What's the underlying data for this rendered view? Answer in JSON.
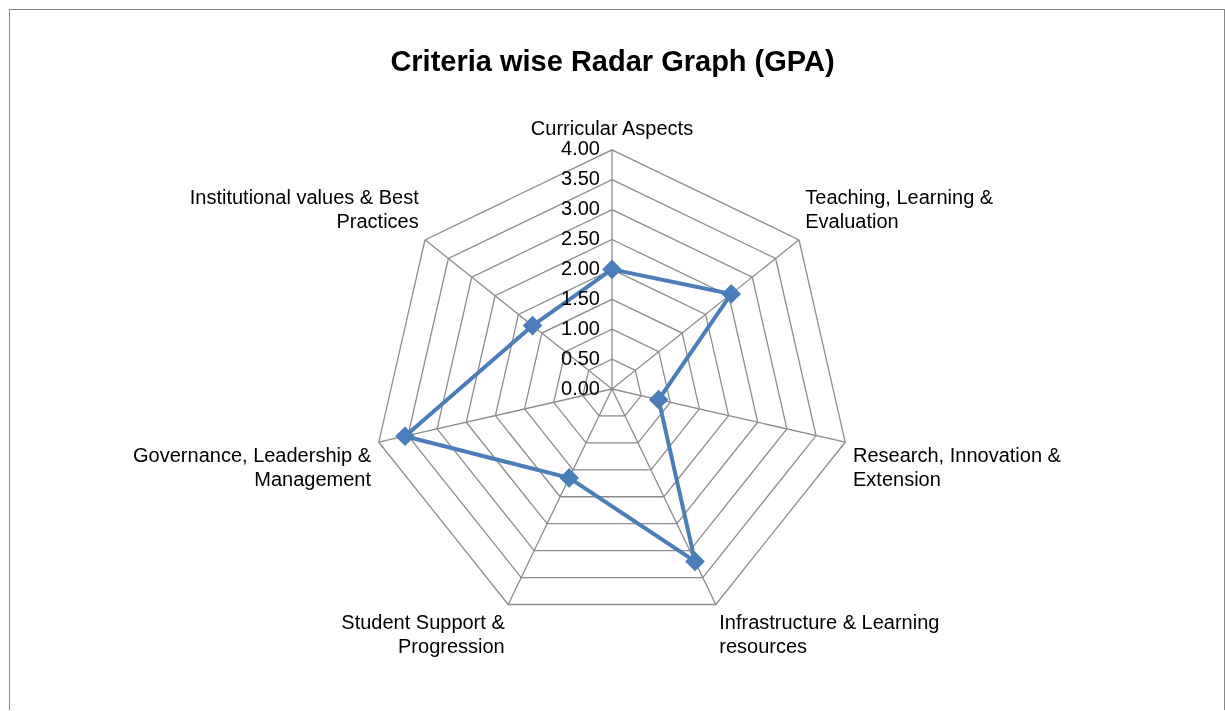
{
  "chart_data": {
    "type": "radar",
    "title": "Criteria wise Radar Graph (GPA)",
    "categories": [
      "Curricular Aspects",
      "Teaching, Learning & Evaluation",
      "Research, Innovation & Extension",
      "Infrastructure & Learning resources",
      "Student Support & Progression",
      "Governance, Leadership & Management",
      "Institutional values & Best Practices"
    ],
    "series": [
      {
        "color": "#4a7ebb",
        "values": [
          2.0,
          2.55,
          0.8,
          3.2,
          1.65,
          3.55,
          1.7
        ]
      }
    ],
    "ylim": [
      0,
      4
    ],
    "yticks": [
      {
        "value": 0,
        "label": "0.00"
      },
      {
        "value": 0.5,
        "label": "0.50"
      },
      {
        "value": 1,
        "label": "1.00"
      },
      {
        "value": 1.5,
        "label": "1.50"
      },
      {
        "value": 2,
        "label": "2.00"
      },
      {
        "value": 2.5,
        "label": "2.50"
      },
      {
        "value": 3,
        "label": "3.00"
      },
      {
        "value": 3.5,
        "label": "3.50"
      },
      {
        "value": 4,
        "label": "4.00"
      }
    ],
    "grid": true,
    "legend": false,
    "marker": "diamond",
    "line_style": "solid"
  }
}
